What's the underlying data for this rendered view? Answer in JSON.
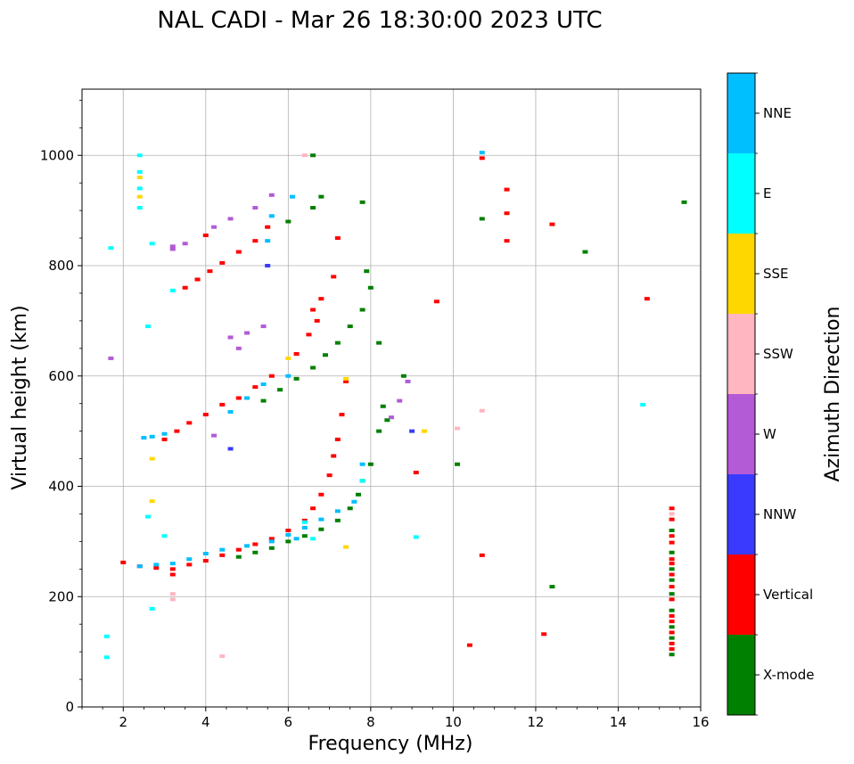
{
  "chart_data": {
    "type": "scatter",
    "title": "NAL CADI - Mar 26 18:30:00 2023 UTC",
    "xlabel": "Frequency (MHz)",
    "ylabel": "Virtual height (km)",
    "xlim": [
      1,
      16
    ],
    "ylim": [
      0,
      1120
    ],
    "xticks": [
      2,
      4,
      6,
      8,
      10,
      12,
      14,
      16
    ],
    "yticks": [
      0,
      200,
      400,
      600,
      800,
      1000
    ],
    "grid": true,
    "colorbar": {
      "title": "Azimuth Direction",
      "categories": [
        {
          "name": "X-mode",
          "color": "#008000"
        },
        {
          "name": "Vertical",
          "color": "#ff0000"
        },
        {
          "name": "NNW",
          "color": "#3a3aff"
        },
        {
          "name": "W",
          "color": "#b35ad6"
        },
        {
          "name": "SSW",
          "color": "#ffb6c1"
        },
        {
          "name": "SSE",
          "color": "#ffd700"
        },
        {
          "name": "E",
          "color": "#00ffff"
        },
        {
          "name": "NNE",
          "color": "#00bfff"
        }
      ]
    },
    "series": [
      {
        "name": "X-mode",
        "points": [
          [
            4.8,
            272
          ],
          [
            5.2,
            280
          ],
          [
            5.6,
            288
          ],
          [
            6.0,
            300
          ],
          [
            6.4,
            310
          ],
          [
            6.8,
            322
          ],
          [
            7.2,
            338
          ],
          [
            7.5,
            360
          ],
          [
            7.7,
            385
          ],
          [
            7.8,
            410
          ],
          [
            8.0,
            440
          ],
          [
            8.2,
            500
          ],
          [
            8.4,
            520
          ],
          [
            8.3,
            545
          ],
          [
            8.8,
            600
          ],
          [
            5.4,
            555
          ],
          [
            5.8,
            575
          ],
          [
            6.2,
            595
          ],
          [
            6.6,
            615
          ],
          [
            6.9,
            638
          ],
          [
            7.2,
            660
          ],
          [
            7.5,
            690
          ],
          [
            7.8,
            720
          ],
          [
            8.0,
            760
          ],
          [
            7.9,
            790
          ],
          [
            6.0,
            880
          ],
          [
            6.6,
            905
          ],
          [
            6.8,
            925
          ],
          [
            6.6,
            1000
          ],
          [
            7.8,
            915
          ],
          [
            8.2,
            660
          ],
          [
            10.1,
            440
          ],
          [
            10.7,
            885
          ],
          [
            13.2,
            825
          ],
          [
            12.4,
            218
          ],
          [
            15.6,
            915
          ],
          [
            15.3,
            320
          ],
          [
            15.3,
            280
          ],
          [
            15.3,
            250
          ],
          [
            15.3,
            230
          ],
          [
            15.3,
            205
          ],
          [
            15.3,
            145
          ],
          [
            15.3,
            125
          ],
          [
            15.3,
            95
          ],
          [
            15.3,
            175
          ]
        ]
      },
      {
        "name": "Vertical",
        "points": [
          [
            2.0,
            262
          ],
          [
            2.4,
            255
          ],
          [
            2.8,
            252
          ],
          [
            3.2,
            250
          ],
          [
            3.6,
            258
          ],
          [
            4.0,
            265
          ],
          [
            4.4,
            275
          ],
          [
            4.8,
            285
          ],
          [
            5.2,
            295
          ],
          [
            5.6,
            305
          ],
          [
            6.0,
            320
          ],
          [
            6.4,
            338
          ],
          [
            6.6,
            360
          ],
          [
            6.8,
            385
          ],
          [
            7.0,
            420
          ],
          [
            7.1,
            455
          ],
          [
            7.2,
            485
          ],
          [
            3.0,
            485
          ],
          [
            3.3,
            500
          ],
          [
            3.6,
            515
          ],
          [
            4.0,
            530
          ],
          [
            4.4,
            548
          ],
          [
            4.8,
            560
          ],
          [
            5.2,
            580
          ],
          [
            5.6,
            600
          ],
          [
            6.2,
            640
          ],
          [
            6.5,
            675
          ],
          [
            6.7,
            700
          ],
          [
            6.8,
            740
          ],
          [
            7.1,
            780
          ],
          [
            3.5,
            760
          ],
          [
            3.8,
            775
          ],
          [
            4.1,
            790
          ],
          [
            4.4,
            805
          ],
          [
            4.8,
            825
          ],
          [
            5.2,
            845
          ],
          [
            5.5,
            870
          ],
          [
            4.0,
            855
          ],
          [
            7.2,
            850
          ],
          [
            6.6,
            720
          ],
          [
            7.4,
            590
          ],
          [
            7.3,
            530
          ],
          [
            9.1,
            425
          ],
          [
            10.7,
            995
          ],
          [
            11.3,
            938
          ],
          [
            11.3,
            895
          ],
          [
            11.3,
            845
          ],
          [
            12.4,
            875
          ],
          [
            14.7,
            740
          ],
          [
            10.4,
            112
          ],
          [
            12.2,
            132
          ],
          [
            10.7,
            275
          ],
          [
            9.6,
            735
          ],
          [
            3.2,
            240
          ],
          [
            15.3,
            360
          ],
          [
            15.3,
            340
          ],
          [
            15.3,
            310
          ],
          [
            15.3,
            298
          ],
          [
            15.3,
            268
          ],
          [
            15.3,
            260
          ],
          [
            15.3,
            240
          ],
          [
            15.3,
            218
          ],
          [
            15.3,
            195
          ],
          [
            15.3,
            165
          ],
          [
            15.3,
            155
          ],
          [
            15.3,
            135
          ],
          [
            15.3,
            115
          ],
          [
            15.3,
            105
          ]
        ]
      },
      {
        "name": "NNW",
        "points": [
          [
            9.0,
            500
          ],
          [
            4.6,
            468
          ],
          [
            5.5,
            800
          ]
        ]
      },
      {
        "name": "W",
        "points": [
          [
            3.2,
            835
          ],
          [
            3.5,
            840
          ],
          [
            4.2,
            870
          ],
          [
            4.6,
            885
          ],
          [
            5.2,
            905
          ],
          [
            5.6,
            928
          ],
          [
            4.6,
            670
          ],
          [
            5.0,
            678
          ],
          [
            5.4,
            690
          ],
          [
            4.8,
            650
          ],
          [
            8.5,
            525
          ],
          [
            8.7,
            555
          ],
          [
            8.9,
            590
          ],
          [
            4.2,
            492
          ],
          [
            1.7,
            632
          ],
          [
            3.2,
            830
          ]
        ]
      },
      {
        "name": "SSW",
        "points": [
          [
            3.2,
            205
          ],
          [
            3.2,
            195
          ],
          [
            4.4,
            92
          ],
          [
            6.4,
            1000
          ],
          [
            10.1,
            505
          ],
          [
            10.7,
            537
          ],
          [
            15.3,
            350
          ]
        ]
      },
      {
        "name": "SSE",
        "points": [
          [
            2.4,
            960
          ],
          [
            2.4,
            925
          ],
          [
            6.0,
            632
          ],
          [
            7.4,
            290
          ],
          [
            9.3,
            500
          ],
          [
            2.7,
            450
          ],
          [
            2.7,
            373
          ],
          [
            7.4,
            595
          ]
        ]
      },
      {
        "name": "E",
        "points": [
          [
            2.4,
            1000
          ],
          [
            2.4,
            970
          ],
          [
            2.4,
            940
          ],
          [
            2.4,
            905
          ],
          [
            2.7,
            840
          ],
          [
            3.2,
            755
          ],
          [
            1.6,
            128
          ],
          [
            1.6,
            90
          ],
          [
            1.7,
            832
          ],
          [
            2.6,
            345
          ],
          [
            2.7,
            178
          ],
          [
            3.0,
            310
          ],
          [
            9.1,
            308
          ],
          [
            14.6,
            548
          ],
          [
            7.8,
            410
          ],
          [
            6.6,
            305
          ],
          [
            6.4,
            335
          ],
          [
            2.6,
            690
          ]
        ]
      },
      {
        "name": "NNE",
        "points": [
          [
            2.4,
            255
          ],
          [
            2.8,
            258
          ],
          [
            3.2,
            260
          ],
          [
            3.6,
            268
          ],
          [
            4.0,
            278
          ],
          [
            4.4,
            285
          ],
          [
            5.0,
            292
          ],
          [
            5.6,
            300
          ],
          [
            6.0,
            312
          ],
          [
            6.4,
            325
          ],
          [
            6.8,
            340
          ],
          [
            7.2,
            355
          ],
          [
            7.6,
            372
          ],
          [
            2.5,
            488
          ],
          [
            2.7,
            490
          ],
          [
            3.0,
            495
          ],
          [
            4.6,
            535
          ],
          [
            5.0,
            560
          ],
          [
            5.4,
            585
          ],
          [
            6.0,
            600
          ],
          [
            5.5,
            845
          ],
          [
            5.6,
            890
          ],
          [
            6.1,
            925
          ],
          [
            10.7,
            1005
          ],
          [
            7.8,
            440
          ],
          [
            6.2,
            305
          ]
        ]
      }
    ]
  }
}
